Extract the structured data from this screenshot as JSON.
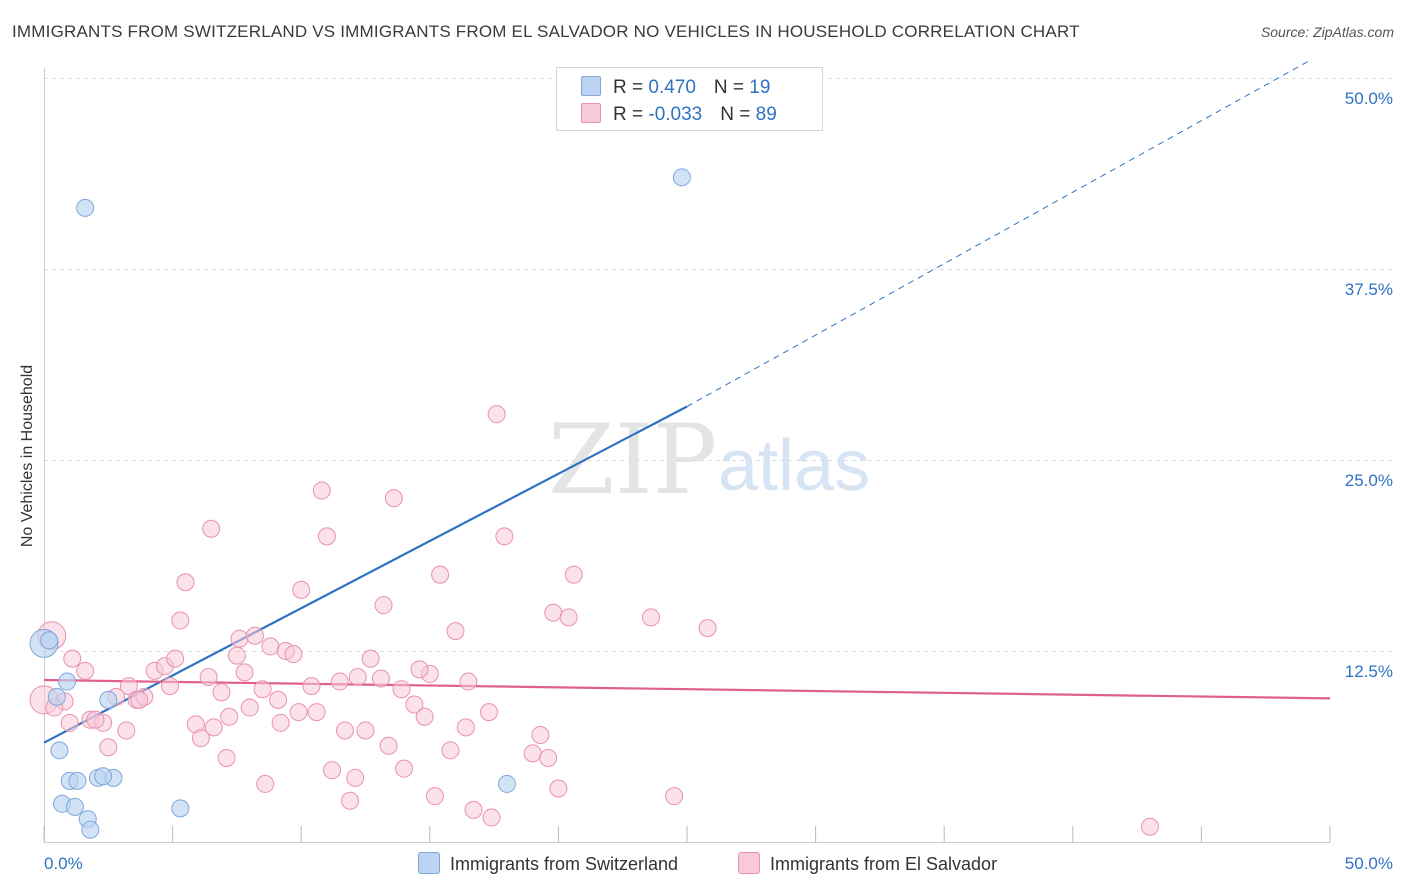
{
  "title": "IMMIGRANTS FROM SWITZERLAND VS IMMIGRANTS FROM EL SALVADOR NO VEHICLES IN HOUSEHOLD CORRELATION CHART",
  "source": "Source: ZipAtlas.com",
  "watermark": {
    "zip": "ZIP",
    "atlas": "atlas"
  },
  "colors": {
    "blue_fill": "#bcd4f1",
    "blue_stroke": "#7ea7dc",
    "blue_line": "#2f72c4",
    "pink_fill": "#f8c9d8",
    "pink_stroke": "#ea91ae",
    "pink_line": "#e0608c",
    "grid": "#dddddd",
    "tick_text": "#2f72c4"
  },
  "legend": {
    "rows": [
      {
        "r_label": "R = ",
        "r_value": " 0.470",
        "n_label": "N = ",
        "n_value": "19"
      },
      {
        "r_label": "R = ",
        "r_value": "-0.033",
        "n_label": "N = ",
        "n_value": "89"
      }
    ]
  },
  "bottom_legend": [
    {
      "label": "Immigrants from Switzerland"
    },
    {
      "label": "Immigrants from El Salvador"
    }
  ],
  "chart_data": {
    "type": "scatter",
    "title": "IMMIGRANTS FROM SWITZERLAND VS IMMIGRANTS FROM EL SALVADOR NO VEHICLES IN HOUSEHOLD CORRELATION CHART",
    "xlabel": "",
    "ylabel": "No Vehicles in Household",
    "xlim": [
      0,
      50
    ],
    "ylim": [
      0,
      50
    ],
    "x_tick_labels": [
      "0.0%",
      "50.0%"
    ],
    "y_ticks": [
      12.5,
      25.0,
      37.5,
      50.0
    ],
    "y_tick_labels": [
      "12.5%",
      "25.0%",
      "37.5%",
      "50.0%"
    ],
    "grid": true,
    "legend_placement": "top-center",
    "series": [
      {
        "name": "Immigrants from Switzerland",
        "r": 0.47,
        "n": 19,
        "trend": {
          "x": [
            0,
            25
          ],
          "y": [
            6.5,
            28.5
          ],
          "extended_to": [
            50,
            50.5
          ]
        },
        "points": [
          {
            "x": 0.0,
            "y": 13.0,
            "big": true
          },
          {
            "x": 1.6,
            "y": 41.5
          },
          {
            "x": 24.8,
            "y": 43.5
          },
          {
            "x": 0.5,
            "y": 9.5
          },
          {
            "x": 0.9,
            "y": 10.5
          },
          {
            "x": 2.5,
            "y": 9.3
          },
          {
            "x": 0.6,
            "y": 6.0
          },
          {
            "x": 1.0,
            "y": 4.0
          },
          {
            "x": 1.3,
            "y": 4.0
          },
          {
            "x": 2.1,
            "y": 4.2
          },
          {
            "x": 2.7,
            "y": 4.2
          },
          {
            "x": 2.3,
            "y": 4.3
          },
          {
            "x": 0.7,
            "y": 2.5
          },
          {
            "x": 1.2,
            "y": 2.3
          },
          {
            "x": 1.7,
            "y": 1.5
          },
          {
            "x": 1.8,
            "y": 0.8
          },
          {
            "x": 5.3,
            "y": 2.2
          },
          {
            "x": 18.0,
            "y": 3.8
          },
          {
            "x": 0.2,
            "y": 13.2
          }
        ]
      },
      {
        "name": "Immigrants from El Salvador",
        "r": -0.033,
        "n": 89,
        "trend": {
          "x": [
            0,
            50
          ],
          "y": [
            10.6,
            9.4
          ]
        },
        "points": [
          {
            "x": 0.0,
            "y": 9.3,
            "big": true
          },
          {
            "x": 0.3,
            "y": 13.5,
            "big": true
          },
          {
            "x": 0.8,
            "y": 9.2
          },
          {
            "x": 1.1,
            "y": 12.0
          },
          {
            "x": 1.6,
            "y": 11.2
          },
          {
            "x": 1.0,
            "y": 7.8
          },
          {
            "x": 1.8,
            "y": 8.0
          },
          {
            "x": 2.3,
            "y": 7.8
          },
          {
            "x": 2.5,
            "y": 6.2
          },
          {
            "x": 2.8,
            "y": 9.5
          },
          {
            "x": 3.2,
            "y": 7.3
          },
          {
            "x": 3.3,
            "y": 10.2
          },
          {
            "x": 3.6,
            "y": 9.3
          },
          {
            "x": 3.9,
            "y": 9.5
          },
          {
            "x": 4.3,
            "y": 11.2
          },
          {
            "x": 4.7,
            "y": 11.5
          },
          {
            "x": 4.9,
            "y": 10.2
          },
          {
            "x": 5.1,
            "y": 12.0
          },
          {
            "x": 5.3,
            "y": 14.5
          },
          {
            "x": 5.5,
            "y": 17.0
          },
          {
            "x": 5.9,
            "y": 7.7
          },
          {
            "x": 6.1,
            "y": 6.8
          },
          {
            "x": 6.4,
            "y": 10.8
          },
          {
            "x": 6.5,
            "y": 20.5
          },
          {
            "x": 6.6,
            "y": 7.5
          },
          {
            "x": 7.1,
            "y": 5.5
          },
          {
            "x": 7.2,
            "y": 8.2
          },
          {
            "x": 7.5,
            "y": 12.2
          },
          {
            "x": 7.6,
            "y": 13.3
          },
          {
            "x": 7.8,
            "y": 11.1
          },
          {
            "x": 8.0,
            "y": 8.8
          },
          {
            "x": 8.2,
            "y": 13.5
          },
          {
            "x": 8.5,
            "y": 10.0
          },
          {
            "x": 8.6,
            "y": 3.8
          },
          {
            "x": 8.8,
            "y": 12.8
          },
          {
            "x": 9.1,
            "y": 9.3
          },
          {
            "x": 9.4,
            "y": 12.5
          },
          {
            "x": 9.7,
            "y": 12.3
          },
          {
            "x": 9.9,
            "y": 8.5
          },
          {
            "x": 10.0,
            "y": 16.5
          },
          {
            "x": 10.4,
            "y": 10.2
          },
          {
            "x": 10.6,
            "y": 8.5
          },
          {
            "x": 10.8,
            "y": 23.0
          },
          {
            "x": 11.0,
            "y": 20.0
          },
          {
            "x": 11.2,
            "y": 4.7
          },
          {
            "x": 11.5,
            "y": 10.5
          },
          {
            "x": 11.7,
            "y": 7.3
          },
          {
            "x": 11.9,
            "y": 2.7
          },
          {
            "x": 12.1,
            "y": 4.2
          },
          {
            "x": 12.2,
            "y": 10.8
          },
          {
            "x": 12.5,
            "y": 7.3
          },
          {
            "x": 12.7,
            "y": 12.0
          },
          {
            "x": 13.1,
            "y": 10.7
          },
          {
            "x": 13.2,
            "y": 15.5
          },
          {
            "x": 13.4,
            "y": 6.3
          },
          {
            "x": 13.6,
            "y": 22.5
          },
          {
            "x": 13.9,
            "y": 10.0
          },
          {
            "x": 14.0,
            "y": 4.8
          },
          {
            "x": 14.4,
            "y": 9.0
          },
          {
            "x": 14.8,
            "y": 8.2
          },
          {
            "x": 15.0,
            "y": 11.0
          },
          {
            "x": 15.2,
            "y": 3.0
          },
          {
            "x": 15.4,
            "y": 17.5
          },
          {
            "x": 15.8,
            "y": 6.0
          },
          {
            "x": 16.0,
            "y": 13.8
          },
          {
            "x": 16.4,
            "y": 7.5
          },
          {
            "x": 16.5,
            "y": 10.5
          },
          {
            "x": 16.7,
            "y": 2.1
          },
          {
            "x": 17.4,
            "y": 1.6
          },
          {
            "x": 17.3,
            "y": 8.5
          },
          {
            "x": 17.6,
            "y": 28.0
          },
          {
            "x": 17.9,
            "y": 20.0
          },
          {
            "x": 19.0,
            "y": 5.8
          },
          {
            "x": 19.3,
            "y": 7.0
          },
          {
            "x": 19.6,
            "y": 5.5
          },
          {
            "x": 19.8,
            "y": 15.0
          },
          {
            "x": 20.4,
            "y": 14.7
          },
          {
            "x": 20.6,
            "y": 17.5
          },
          {
            "x": 20.0,
            "y": 3.5
          },
          {
            "x": 23.6,
            "y": 14.7
          },
          {
            "x": 24.5,
            "y": 3.0
          },
          {
            "x": 25.8,
            "y": 14.0
          },
          {
            "x": 43.0,
            "y": 1.0
          },
          {
            "x": 3.7,
            "y": 9.3
          },
          {
            "x": 2.0,
            "y": 8.0
          },
          {
            "x": 6.9,
            "y": 9.8
          },
          {
            "x": 0.4,
            "y": 8.8
          },
          {
            "x": 14.6,
            "y": 11.3
          },
          {
            "x": 9.2,
            "y": 7.8
          }
        ]
      }
    ]
  }
}
